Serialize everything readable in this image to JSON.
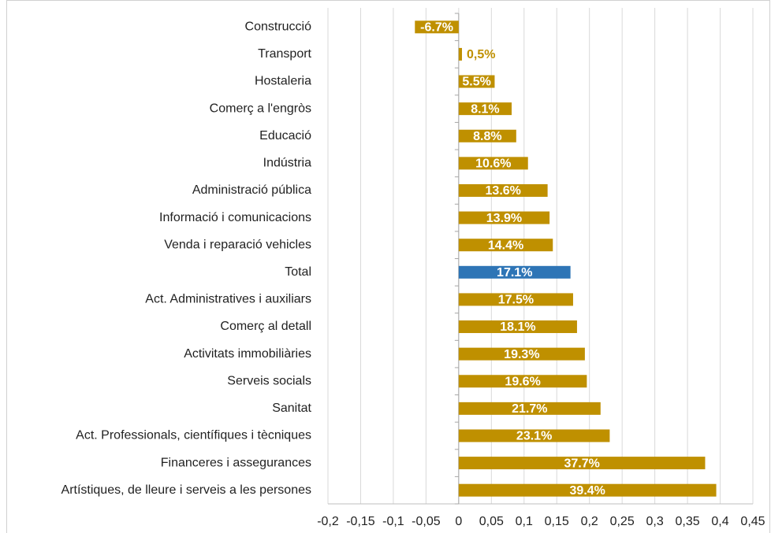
{
  "chart_data": {
    "type": "barh",
    "categories": [
      "Construcció",
      "Transport",
      "Hostaleria",
      "Comerç a l'engròs",
      "Educació",
      "Indústria",
      "Administració pública",
      "Informació i comunicacions",
      "Venda i reparació vehicles",
      "Total",
      "Act. Administratives i auxiliars",
      "Comerç al detall",
      "Activitats immobiliàries",
      "Serveis socials",
      "Sanitat",
      "Act. Professionals, científiques i tècniques",
      "Financeres i assegurances",
      "Artístiques, de lleure i serveis a les persones"
    ],
    "values": [
      -0.067,
      0.005,
      0.055,
      0.081,
      0.088,
      0.106,
      0.136,
      0.139,
      0.144,
      0.171,
      0.175,
      0.181,
      0.193,
      0.196,
      0.217,
      0.231,
      0.377,
      0.394
    ],
    "value_labels": [
      "-6.7%",
      "0,5%",
      "5.5%",
      "8.1%",
      "8.8%",
      "10.6%",
      "13.6%",
      "13.9%",
      "14.4%",
      "17.1%",
      "17.5%",
      "18.1%",
      "19.3%",
      "19.6%",
      "21.7%",
      "23.1%",
      "37.7%",
      "39.4%"
    ],
    "colors": [
      "#bf9000",
      "#bf9000",
      "#bf9000",
      "#bf9000",
      "#bf9000",
      "#bf9000",
      "#bf9000",
      "#bf9000",
      "#bf9000",
      "#2e75b6",
      "#bf9000",
      "#bf9000",
      "#bf9000",
      "#bf9000",
      "#bf9000",
      "#bf9000",
      "#bf9000",
      "#bf9000"
    ],
    "xlim": [
      -0.2,
      0.45
    ],
    "xticks": [
      {
        "value": -0.2,
        "label": "-0,2"
      },
      {
        "value": -0.15,
        "label": "-0,15"
      },
      {
        "value": -0.1,
        "label": "-0,1"
      },
      {
        "value": -0.05,
        "label": "-0,05"
      },
      0,
      {
        "value": 0.05,
        "label": "0,05"
      },
      {
        "value": 0.1,
        "label": "0,1"
      },
      {
        "value": 0.15,
        "label": "0,15"
      },
      {
        "value": 0.2,
        "label": "0,2"
      },
      {
        "value": 0.25,
        "label": "0,25"
      },
      {
        "value": 0.3,
        "label": "0,3"
      },
      {
        "value": 0.35,
        "label": "0,35"
      },
      {
        "value": 0.4,
        "label": "0,4"
      },
      {
        "value": 0.45,
        "label": "0,45"
      }
    ],
    "grid": true
  }
}
